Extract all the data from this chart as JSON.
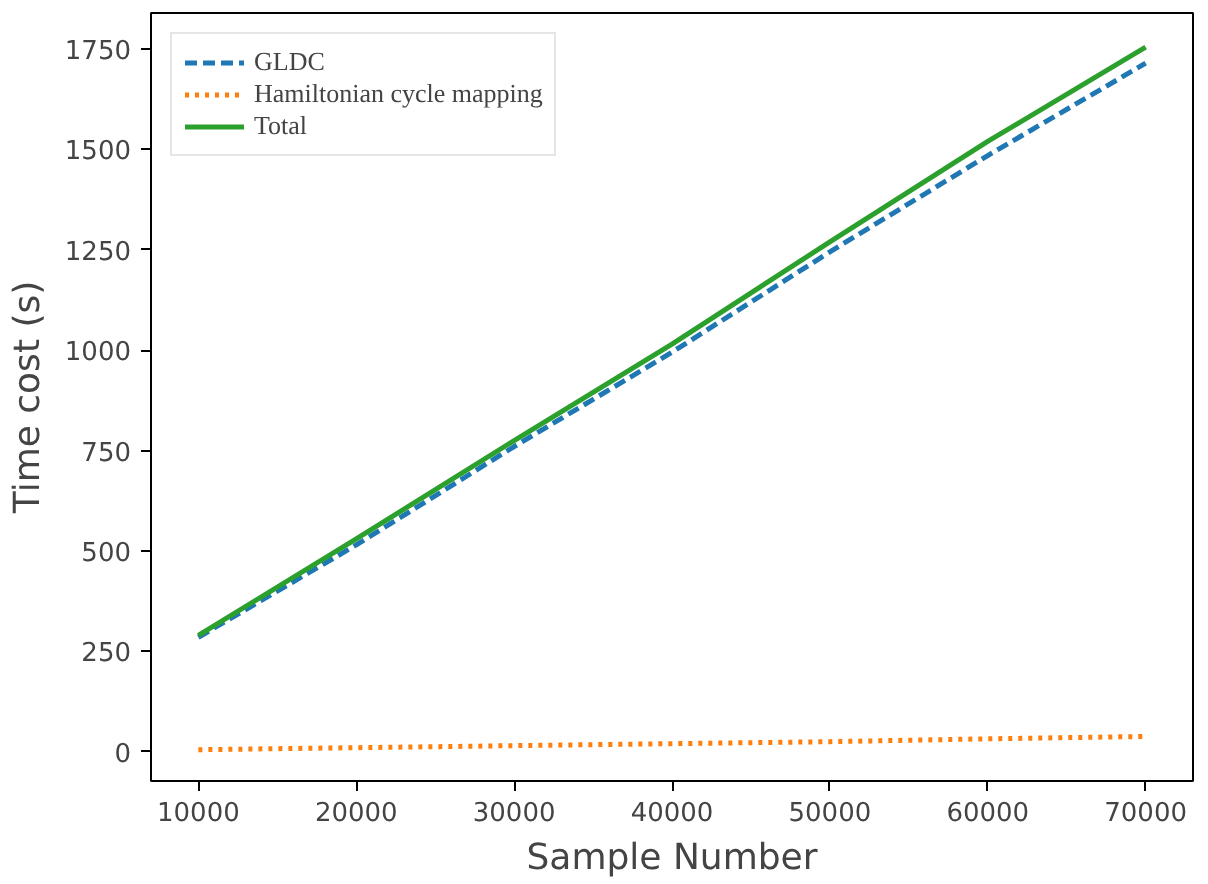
{
  "chart_data": {
    "type": "line",
    "xlabel": "Sample Number",
    "ylabel": "Time cost (s)",
    "x": [
      10000,
      20000,
      30000,
      40000,
      50000,
      60000,
      70000
    ],
    "series": [
      {
        "name": "GLDC",
        "color": "#1f77b4",
        "line_style": "dashed",
        "values": [
          285,
          515,
          760,
          995,
          1245,
          1485,
          1715
        ]
      },
      {
        "name": "Hamiltonian cycle mapping",
        "color": "#ff7f0e",
        "line_style": "dotted",
        "values": [
          5,
          10,
          15,
          20,
          25,
          32,
          38
        ]
      },
      {
        "name": "Total",
        "color": "#2ca02c",
        "line_style": "solid",
        "values": [
          290,
          530,
          775,
          1015,
          1270,
          1520,
          1755
        ]
      }
    ],
    "xlim": [
      7000,
      73000
    ],
    "xticks": [
      10000,
      20000,
      30000,
      40000,
      50000,
      60000,
      70000
    ],
    "ylim": [
      -73,
      1840
    ],
    "yticks": [
      0,
      250,
      500,
      750,
      1000,
      1250,
      1500,
      1750
    ],
    "grid": false,
    "legend": "top left"
  }
}
